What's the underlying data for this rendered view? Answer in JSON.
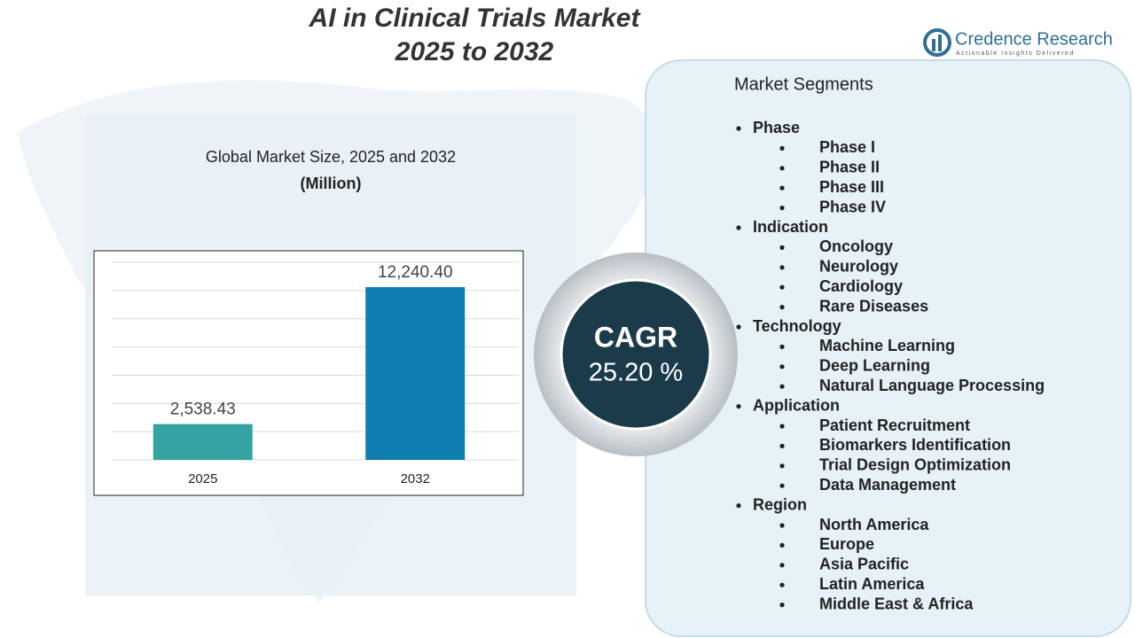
{
  "header": {
    "title": "AI in Clinical Trials Market",
    "subtitle": "2025 to 2032"
  },
  "brand": {
    "name": "Credence Research",
    "tagline": "Actionable Insights Delivered"
  },
  "chart_data": {
    "type": "bar",
    "title": "Global Market Size, 2025 and 2032",
    "subtitle": "(Million)",
    "categories": [
      "2025",
      "2032"
    ],
    "values": [
      2538.43,
      12240.4
    ],
    "value_labels": [
      "2,538.43",
      "12,240.40"
    ],
    "colors": [
      "#35a3a3",
      "#0f7db0"
    ],
    "ylim": [
      0,
      14000
    ],
    "yticks": [
      0,
      2000,
      4000,
      6000,
      8000,
      10000,
      12000,
      14000
    ],
    "tick_labels": false,
    "grid": true
  },
  "cagr": {
    "label": "CAGR",
    "value": "25.20 %"
  },
  "segments": {
    "heading": "Market Segments",
    "groups": [
      {
        "name": "Phase",
        "items": [
          "Phase I",
          "Phase II",
          "Phase III",
          "Phase IV"
        ]
      },
      {
        "name": "Indication",
        "items": [
          "Oncology",
          "Neurology",
          "Cardiology",
          "Rare Diseases"
        ]
      },
      {
        "name": "Technology",
        "items": [
          "Machine Learning",
          "Deep Learning",
          "Natural Language Processing"
        ]
      },
      {
        "name": "Application",
        "items": [
          "Patient Recruitment",
          "Biomarkers Identification",
          "Trial Design Optimization",
          "Data Management"
        ]
      },
      {
        "name": "Region",
        "items": [
          "North America",
          "Europe",
          "Asia Pacific",
          "Latin America",
          "Middle East & Africa"
        ]
      }
    ]
  }
}
